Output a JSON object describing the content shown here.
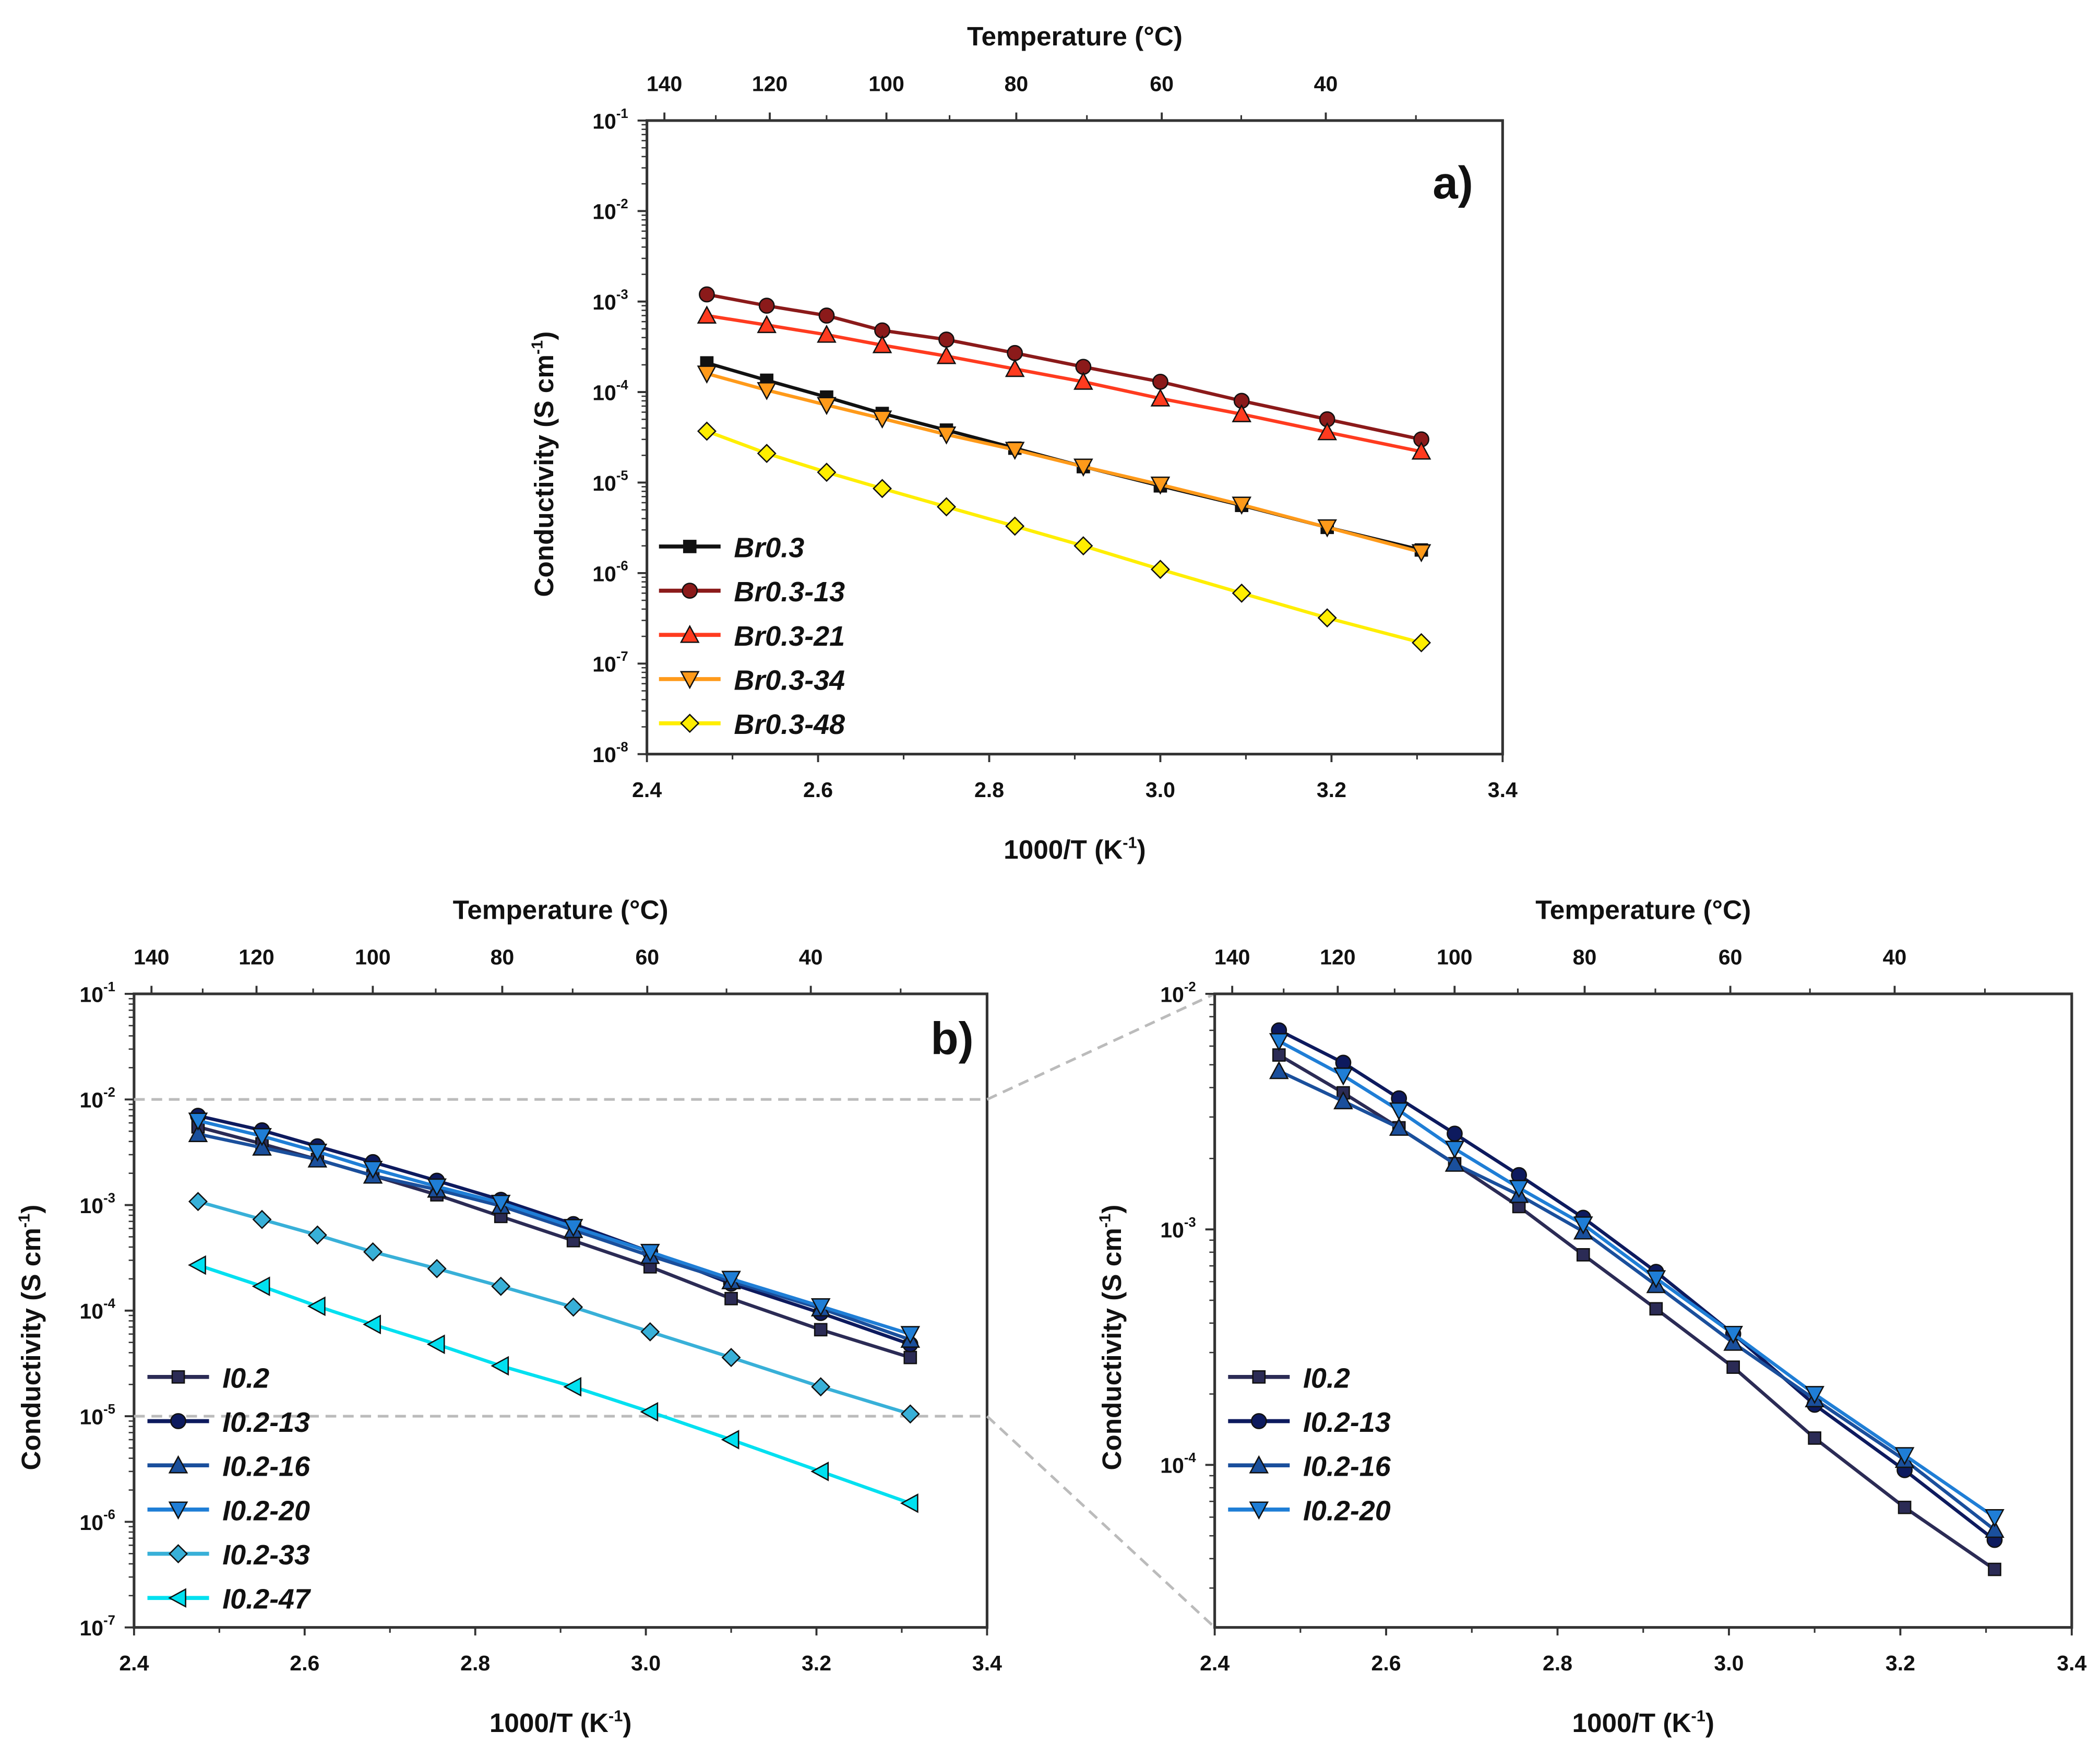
{
  "chart_data": [
    {
      "id": "a",
      "type": "line",
      "panel_label": "a)",
      "xlabel": "1000/T (K",
      "xlabel_sup": "-1",
      "xlabel_end": ")",
      "ylabel": "Conductivity (S cm",
      "ylabel_sup": "-1",
      "ylabel_end": ")",
      "top_axis_label": "Temperature (°C)",
      "top_ticks_c": [
        140,
        120,
        100,
        80,
        60,
        40
      ],
      "top_minor_c": [
        130,
        110,
        90,
        70,
        50,
        30
      ],
      "xlim": [
        2.4,
        3.4
      ],
      "xticks": [
        "2.4",
        "2.6",
        "2.8",
        "3.0",
        "3.2",
        "3.4"
      ],
      "ylim_exp": [
        -8,
        -1
      ],
      "yscale": "log",
      "legend_position": "bottom-left",
      "x": [
        2.47,
        2.54,
        2.61,
        2.675,
        2.75,
        2.83,
        2.91,
        3.0,
        3.095,
        3.195,
        3.305
      ],
      "series": [
        {
          "name": "Br0.3",
          "color": "#111111",
          "marker": "square",
          "values": [
            0.00021,
            0.000135,
            8.8e-05,
            5.8e-05,
            3.8e-05,
            2.4e-05,
            1.5e-05,
            9.2e-06,
            5.6e-06,
            3.2e-06,
            1.8e-06
          ]
        },
        {
          "name": "Br0.3-13",
          "color": "#8b1a1a",
          "marker": "circle",
          "values": [
            0.0012,
            0.0009,
            0.0007,
            0.00048,
            0.00038,
            0.00027,
            0.00019,
            0.00013,
            8e-05,
            5e-05,
            3e-05
          ]
        },
        {
          "name": "Br0.3-21",
          "color": "#ff3b1f",
          "marker": "triangle-up",
          "values": [
            0.0007,
            0.00055,
            0.00043,
            0.00033,
            0.00025,
            0.00018,
            0.00013,
            8.5e-05,
            5.7e-05,
            3.6e-05,
            2.2e-05
          ]
        },
        {
          "name": "Br0.3-34",
          "color": "#ff9a1a",
          "marker": "triangle-down",
          "values": [
            0.00016,
            0.000105,
            7.2e-05,
            5.1e-05,
            3.4e-05,
            2.3e-05,
            1.5e-05,
            9.5e-06,
            5.7e-06,
            3.2e-06,
            1.7e-06
          ]
        },
        {
          "name": "Br0.3-48",
          "color": "#ffee00",
          "marker": "diamond",
          "values": [
            3.7e-05,
            2.1e-05,
            1.3e-05,
            8.6e-06,
            5.4e-06,
            3.3e-06,
            2e-06,
            1.1e-06,
            6e-07,
            3.2e-07,
            1.7e-07
          ]
        }
      ]
    },
    {
      "id": "b",
      "type": "line",
      "panel_label": "b)",
      "xlabel": "1000/T (K",
      "xlabel_sup": "-1",
      "xlabel_end": ")",
      "ylabel": "Conductivity (S cm",
      "ylabel_sup": "-1",
      "ylabel_end": ")",
      "top_axis_label": "Temperature (°C)",
      "top_ticks_c": [
        140,
        120,
        100,
        80,
        60,
        40
      ],
      "top_minor_c": [
        130,
        110,
        90,
        70,
        50,
        30
      ],
      "xlim": [
        2.4,
        3.4
      ],
      "xticks": [
        "2.4",
        "2.6",
        "2.8",
        "3.0",
        "3.2",
        "3.4"
      ],
      "ylim_exp": [
        -7,
        -1
      ],
      "yscale": "log",
      "legend_position": "bottom-left",
      "zoom_region_exp": [
        -5,
        -2
      ],
      "x": [
        2.475,
        2.55,
        2.615,
        2.68,
        2.755,
        2.83,
        2.915,
        3.005,
        3.1,
        3.205,
        3.31
      ],
      "series": [
        {
          "name": "I0.2",
          "color": "#2b2b55",
          "marker": "square",
          "values": [
            0.0055,
            0.0038,
            0.0027,
            0.0019,
            0.00125,
            0.00078,
            0.00046,
            0.00026,
            0.00013,
            6.6e-05,
            3.6e-05
          ]
        },
        {
          "name": "I0.2-13",
          "color": "#0d1a5e",
          "marker": "circle",
          "values": [
            0.007,
            0.0051,
            0.0036,
            0.00255,
            0.0017,
            0.00112,
            0.00066,
            0.00036,
            0.00018,
            9.5e-05,
            4.8e-05
          ]
        },
        {
          "name": "I0.2-16",
          "color": "#1a4f9c",
          "marker": "triangle-up",
          "values": [
            0.0047,
            0.0035,
            0.0027,
            0.0019,
            0.0014,
            0.00098,
            0.00058,
            0.00033,
            0.00019,
            0.000105,
            5.3e-05
          ]
        },
        {
          "name": "I0.2-20",
          "color": "#1f7ed6",
          "marker": "triangle-down",
          "values": [
            0.0063,
            0.0045,
            0.0032,
            0.0022,
            0.0015,
            0.00105,
            0.00062,
            0.00036,
            0.0002,
            0.00011,
            6e-05
          ]
        },
        {
          "name": "I0.2-33",
          "color": "#38b0d8",
          "marker": "diamond",
          "values": [
            0.00108,
            0.00073,
            0.00052,
            0.00036,
            0.00025,
            0.00017,
            0.000108,
            6.3e-05,
            3.6e-05,
            1.9e-05,
            1.05e-05
          ]
        },
        {
          "name": "I0.2-47",
          "color": "#00e0f0",
          "marker": "triangle-left",
          "values": [
            0.00027,
            0.00017,
            0.00011,
            7.4e-05,
            4.8e-05,
            3e-05,
            1.9e-05,
            1.1e-05,
            6e-06,
            3e-06,
            1.5e-06
          ]
        }
      ]
    },
    {
      "id": "b-zoom",
      "type": "line",
      "panel_label": "",
      "xlabel": "1000/T (K",
      "xlabel_sup": "-1",
      "xlabel_end": ")",
      "ylabel": "Conductivity (S cm",
      "ylabel_sup": "-1",
      "ylabel_end": ")",
      "top_axis_label": "Temperature (°C)",
      "top_ticks_c": [
        140,
        120,
        100,
        80,
        60,
        40
      ],
      "top_minor_c": [
        130,
        110,
        90,
        70,
        50,
        30
      ],
      "xlim": [
        2.4,
        3.4
      ],
      "xticks": [
        "2.4",
        "2.6",
        "2.8",
        "3.0",
        "3.2",
        "3.4"
      ],
      "ylim_exp": [
        -4.69,
        -2
      ],
      "yscale": "log",
      "legend_position": "bottom-left",
      "x": [
        2.475,
        2.55,
        2.615,
        2.68,
        2.755,
        2.83,
        2.915,
        3.005,
        3.1,
        3.205,
        3.31
      ],
      "series": [
        {
          "name": "I0.2",
          "color": "#2b2b55",
          "marker": "square",
          "values": [
            0.0055,
            0.0038,
            0.0027,
            0.0019,
            0.00125,
            0.00078,
            0.00046,
            0.00026,
            0.00013,
            6.6e-05,
            3.6e-05
          ]
        },
        {
          "name": "I0.2-13",
          "color": "#0d1a5e",
          "marker": "circle",
          "values": [
            0.007,
            0.0051,
            0.0036,
            0.00255,
            0.0017,
            0.00112,
            0.00066,
            0.00036,
            0.00018,
            9.5e-05,
            4.8e-05
          ]
        },
        {
          "name": "I0.2-16",
          "color": "#1a4f9c",
          "marker": "triangle-up",
          "values": [
            0.0047,
            0.0035,
            0.0027,
            0.0019,
            0.0014,
            0.00098,
            0.00058,
            0.00033,
            0.00019,
            0.000105,
            5.3e-05
          ]
        },
        {
          "name": "I0.2-20",
          "color": "#1f7ed6",
          "marker": "triangle-down",
          "values": [
            0.0063,
            0.0045,
            0.0032,
            0.0022,
            0.0015,
            0.00105,
            0.00062,
            0.00036,
            0.0002,
            0.00011,
            6e-05
          ]
        }
      ]
    }
  ]
}
